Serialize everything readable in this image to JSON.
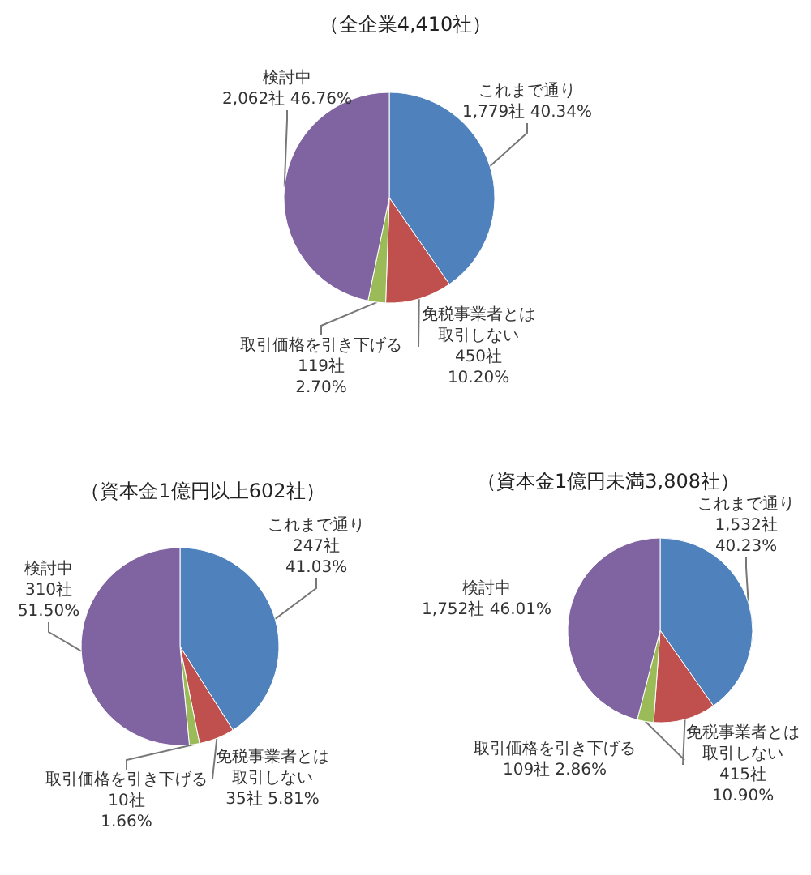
{
  "chart_data": [
    {
      "type": "pie",
      "title": "（全企業4,410社）",
      "categories": [
        "これまで通り",
        "免税事業者とは取引しない",
        "取引価格を引き下げる",
        "検討中"
      ],
      "values": [
        1779,
        450,
        119,
        2062
      ],
      "colors": [
        "#4f81bd",
        "#c0504d",
        "#9bbb59",
        "#8064a2"
      ],
      "value_labels": [
        "1,779社 40.34%",
        "450社\n10.20%",
        "119社\n2.70%",
        "2,062社 46.76%"
      ]
    },
    {
      "type": "pie",
      "title": "（資本金1億円以上602社）",
      "categories": [
        "これまで通り",
        "免税事業者とは取引しない",
        "取引価格を引き下げる",
        "検討中"
      ],
      "values": [
        247,
        35,
        10,
        310
      ],
      "colors": [
        "#4f81bd",
        "#c0504d",
        "#9bbb59",
        "#8064a2"
      ],
      "value_labels": [
        "247社\n41.03%",
        "35社 5.81%",
        "10社\n1.66%",
        "310社\n51.50%"
      ]
    },
    {
      "type": "pie",
      "title": "（資本金1億円未満3,808社）",
      "categories": [
        "これまで通り",
        "免税事業者とは取引しない",
        "取引価格を引き下げる",
        "検討中"
      ],
      "values": [
        1532,
        415,
        109,
        1752
      ],
      "colors": [
        "#4f81bd",
        "#c0504d",
        "#9bbb59",
        "#8064a2"
      ],
      "value_labels": [
        "1,532社\n40.23%",
        "415社\n10.90%",
        "109社 2.86%",
        "1,752社 46.01%"
      ]
    }
  ]
}
